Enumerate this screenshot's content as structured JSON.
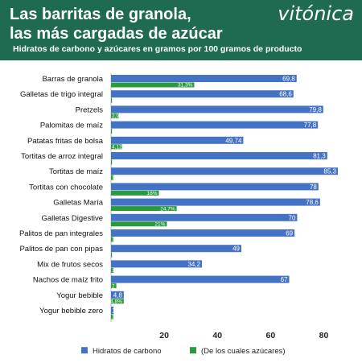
{
  "header": {
    "title_line1": "Las barritas de granola,",
    "title_line2": "las más cargadas de azúcar",
    "subtitle": "Hidratos de carbono y azúcares en gramos por 100 gramos de producto",
    "logo": "vitónica"
  },
  "colors": {
    "header_bg": "#1f6b52",
    "carbs": "#4472c4",
    "sugars": "#2a9a3e"
  },
  "chart_data": {
    "type": "bar",
    "orientation": "horizontal",
    "categories": [
      "Barras de granola",
      "Galletas de trigo integral",
      "Pretzels",
      "Palomitas de maíz",
      "Patatas fritas de bolsa",
      "Tortitas de arroz integral",
      "Tortitas de maíz",
      "Tortitas con chocolate",
      "Galletas María",
      "Galletas Digestive",
      "Palitos de pan integrales",
      "Palitos de pan con pipas",
      "Mix de frutos secos",
      "Nachos de maíz frito",
      "Yogur bebible",
      "Yogur bebible zero"
    ],
    "series": [
      {
        "name": "Hidratos de carbono",
        "values": [
          69.8,
          68.6,
          79.8,
          77.8,
          49.74,
          81.3,
          85.3,
          78,
          78.6,
          70,
          69,
          49,
          34.2,
          67,
          4.8,
          1
        ],
        "labels": [
          "69,8",
          "68,6",
          "79,8",
          "77,8",
          "49,74",
          "81,3",
          "85,3",
          "78",
          "78,6",
          "70",
          "69",
          "49",
          "34,2",
          "67",
          "4,8",
          "1"
        ]
      },
      {
        "name": "(De los cuales azúcares)",
        "values": [
          31.3,
          0,
          2.9,
          0,
          4.12,
          0,
          1,
          18,
          24.7,
          21,
          1,
          0,
          1,
          2,
          4.8,
          1
        ],
        "labels": [
          "31,3%",
          "",
          "2,9",
          "",
          "4,12",
          "",
          "1",
          "18%",
          "24,7%",
          "21%",
          "1",
          "",
          "1",
          "2",
          "4,8%",
          "1"
        ]
      }
    ],
    "xlim": [
      0,
      85.3
    ],
    "xticks": [
      20,
      40,
      60,
      80
    ],
    "legend_position": "bottom",
    "grid": false
  }
}
